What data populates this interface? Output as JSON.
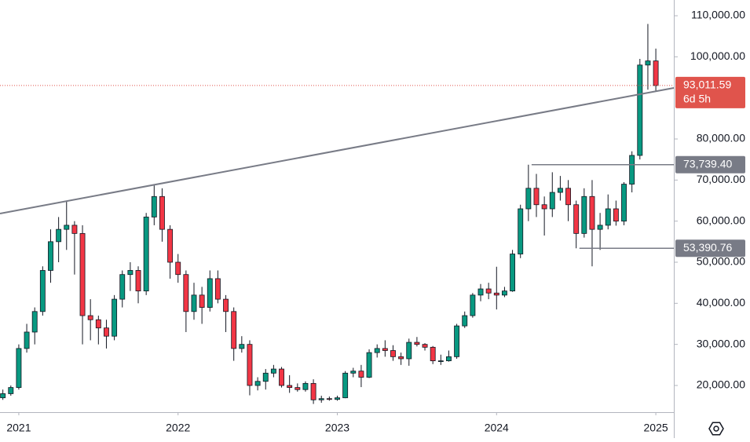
{
  "chart_data": {
    "type": "candlestick",
    "x": [
      2020.9,
      2020.95,
      2021.0,
      2021.05,
      2021.1,
      2021.15,
      2021.2,
      2021.25,
      2021.3,
      2021.35,
      2021.4,
      2021.45,
      2021.5,
      2021.55,
      2021.6,
      2021.65,
      2021.7,
      2021.75,
      2021.8,
      2021.85,
      2021.9,
      2021.95,
      2022.0,
      2022.05,
      2022.1,
      2022.15,
      2022.2,
      2022.25,
      2022.3,
      2022.35,
      2022.4,
      2022.45,
      2022.5,
      2022.55,
      2022.6,
      2022.65,
      2022.7,
      2022.75,
      2022.8,
      2022.85,
      2022.9,
      2022.95,
      2023.0,
      2023.05,
      2023.1,
      2023.15,
      2023.2,
      2023.25,
      2023.3,
      2023.35,
      2023.4,
      2023.45,
      2023.5,
      2023.55,
      2023.6,
      2023.65,
      2023.7,
      2023.75,
      2023.8,
      2023.85,
      2023.9,
      2023.95,
      2024.0,
      2024.05,
      2024.1,
      2024.15,
      2024.2,
      2024.25,
      2024.3,
      2024.35,
      2024.4,
      2024.45,
      2024.5,
      2024.55,
      2024.6,
      2024.65,
      2024.7,
      2024.75,
      2024.8,
      2024.85,
      2024.9,
      2024.95,
      2025.0
    ],
    "ohlc": [
      [
        17000,
        19000,
        16500,
        18000
      ],
      [
        18000,
        20000,
        17500,
        19500
      ],
      [
        19500,
        30000,
        19000,
        29000
      ],
      [
        29000,
        35000,
        28000,
        33000
      ],
      [
        33000,
        39000,
        30000,
        38000
      ],
      [
        38000,
        49000,
        37000,
        48000
      ],
      [
        48000,
        58000,
        45000,
        55000
      ],
      [
        55000,
        61000,
        50000,
        58000
      ],
      [
        58000,
        65000,
        53000,
        59000
      ],
      [
        59000,
        60000,
        47000,
        57000
      ],
      [
        57000,
        59000,
        30000,
        37000
      ],
      [
        37000,
        41000,
        31000,
        36000
      ],
      [
        36000,
        37000,
        30000,
        34000
      ],
      [
        34000,
        36000,
        29000,
        32000
      ],
      [
        32000,
        42000,
        31000,
        41000
      ],
      [
        41000,
        48000,
        39000,
        47000
      ],
      [
        47000,
        50000,
        43000,
        48000
      ],
      [
        48000,
        49000,
        40000,
        43000
      ],
      [
        43000,
        62000,
        42000,
        61000
      ],
      [
        61000,
        69000,
        59000,
        66000
      ],
      [
        66000,
        68000,
        55000,
        58000
      ],
      [
        58000,
        59000,
        46000,
        50000
      ],
      [
        50000,
        52000,
        45000,
        47000
      ],
      [
        47000,
        48000,
        33000,
        38000
      ],
      [
        38000,
        45000,
        36000,
        42000
      ],
      [
        42000,
        44000,
        35000,
        39000
      ],
      [
        39000,
        48000,
        38000,
        46000
      ],
      [
        46000,
        48000,
        40000,
        41000
      ],
      [
        41000,
        42000,
        33000,
        38000
      ],
      [
        38000,
        39000,
        26000,
        29000
      ],
      [
        29000,
        32000,
        28000,
        30000
      ],
      [
        30000,
        31000,
        17600,
        20000
      ],
      [
        20000,
        22000,
        18800,
        21000
      ],
      [
        21000,
        24000,
        19000,
        23000
      ],
      [
        23000,
        25000,
        22000,
        24000
      ],
      [
        24000,
        24500,
        19500,
        20000
      ],
      [
        20000,
        22500,
        18200,
        19500
      ],
      [
        19500,
        20500,
        18500,
        19000
      ],
      [
        19000,
        21000,
        18500,
        20500
      ],
      [
        20500,
        21500,
        15500,
        16500
      ],
      [
        16500,
        17500,
        15800,
        16800
      ],
      [
        16800,
        17300,
        16300,
        16600
      ],
      [
        16600,
        17500,
        16300,
        17000
      ],
      [
        17000,
        23500,
        16900,
        23000
      ],
      [
        23000,
        24300,
        22000,
        23500
      ],
      [
        23500,
        25000,
        19600,
        22000
      ],
      [
        22000,
        28800,
        21800,
        28000
      ],
      [
        28000,
        30000,
        26800,
        29000
      ],
      [
        29000,
        31000,
        27000,
        28500
      ],
      [
        28500,
        29800,
        26000,
        27000
      ],
      [
        27000,
        28000,
        25000,
        26500
      ],
      [
        26500,
        31400,
        24800,
        30500
      ],
      [
        30500,
        31800,
        29500,
        30000
      ],
      [
        30000,
        30300,
        28500,
        29300
      ],
      [
        29300,
        29600,
        25200,
        26000
      ],
      [
        26000,
        27500,
        25000,
        26000
      ],
      [
        26000,
        28500,
        25800,
        27000
      ],
      [
        27000,
        35000,
        26500,
        34500
      ],
      [
        34500,
        38000,
        34000,
        37000
      ],
      [
        37000,
        42500,
        36500,
        42000
      ],
      [
        42000,
        44700,
        40500,
        43500
      ],
      [
        43500,
        45000,
        41000,
        42500
      ],
      [
        42500,
        48900,
        38500,
        42000
      ],
      [
        42000,
        44000,
        41500,
        43000
      ],
      [
        43000,
        53000,
        42800,
        52000
      ],
      [
        52000,
        64000,
        51000,
        63000
      ],
      [
        63000,
        73739.4,
        60000,
        68000
      ],
      [
        68000,
        71500,
        61000,
        64000
      ],
      [
        64000,
        66000,
        56500,
        63000
      ],
      [
        63000,
        71900,
        61000,
        67000
      ],
      [
        67000,
        71000,
        65000,
        68000
      ],
      [
        68000,
        70000,
        60000,
        64000
      ],
      [
        64000,
        65000,
        53390.76,
        57000
      ],
      [
        57000,
        68000,
        56000,
        66000
      ],
      [
        66000,
        70000,
        49000,
        58000
      ],
      [
        58000,
        62000,
        53000,
        59000
      ],
      [
        59000,
        66500,
        58000,
        63000
      ],
      [
        63000,
        65000,
        58900,
        60000
      ],
      [
        60000,
        69500,
        59000,
        69000
      ],
      [
        69000,
        77000,
        67000,
        76000
      ],
      [
        76000,
        99500,
        75000,
        98000
      ],
      [
        98000,
        108000,
        92000,
        99000
      ],
      [
        99000,
        102000,
        91500,
        93011.59
      ]
    ],
    "up_color": "#089981",
    "down_color": "#f23645",
    "xlim": [
      2020.882,
      2025.113
    ],
    "xticks": [
      2021,
      2022,
      2023,
      2024,
      2025
    ],
    "ylim": [
      13500,
      113830
    ],
    "yticks": [
      {
        "value": 20000,
        "label": "20,000.00"
      },
      {
        "value": 30000,
        "label": "30,000.00"
      },
      {
        "value": 40000,
        "label": "40,000.00"
      },
      {
        "value": 50000,
        "label": "50,000.00"
      },
      {
        "value": 60000,
        "label": "60,000.00"
      },
      {
        "value": 70000,
        "label": "70,000.00"
      },
      {
        "value": 80000,
        "label": "80,000.00"
      },
      {
        "value": 100000,
        "label": "100,000.00"
      },
      {
        "value": 110000,
        "label": "110,000.00"
      }
    ],
    "trendline": {
      "x": [
        2020.882,
        2025.113
      ],
      "y": [
        61850,
        92430
      ]
    },
    "price_lines": [
      {
        "value": 93011.59,
        "label": "93,011.59",
        "countdown": "6d 5h",
        "color": "#e0544c"
      },
      {
        "value": 73739.4,
        "label": "73,739.40",
        "x_start": 2024.22,
        "color": "#787b86"
      },
      {
        "value": 53390.76,
        "label": "53,390.76",
        "x_start": 2024.52,
        "color": "#787b86"
      }
    ]
  }
}
